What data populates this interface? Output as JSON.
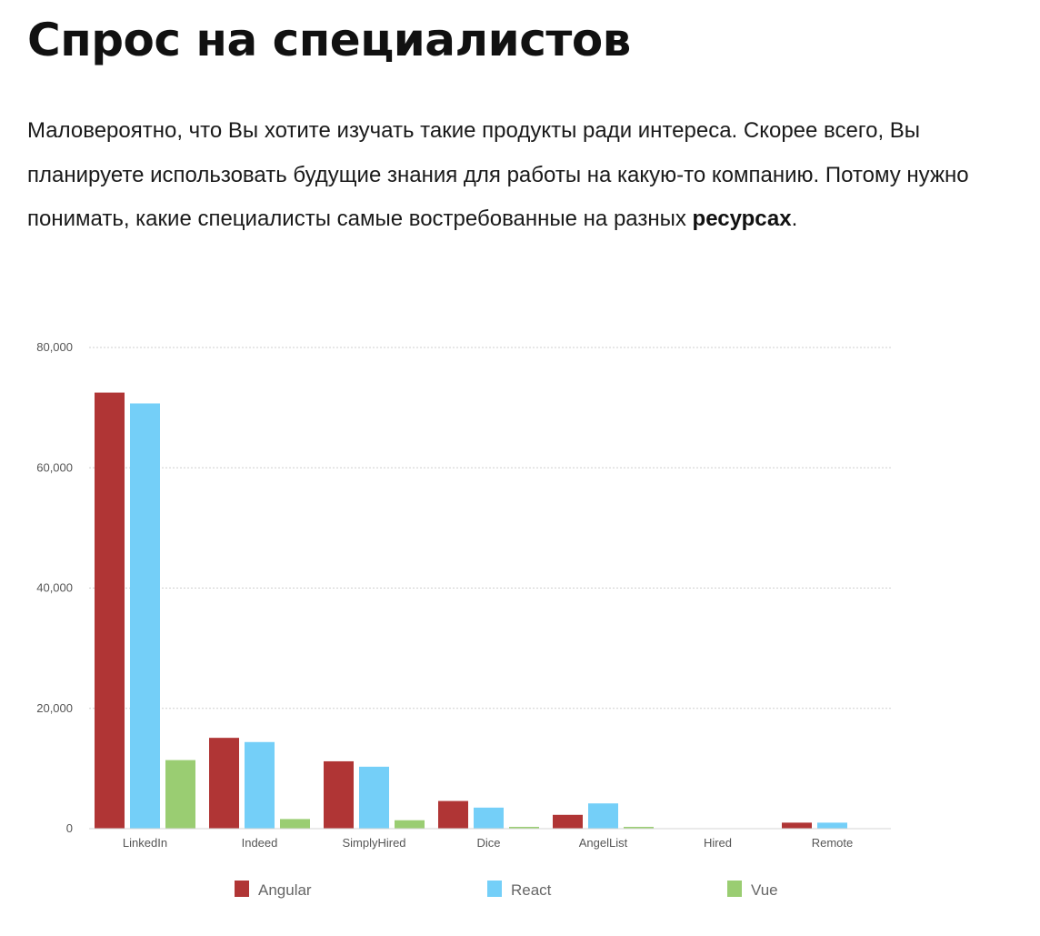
{
  "page": {
    "title": "Спрос на специалистов",
    "intro_text": "Маловероятно, что Вы хотите изучать такие продукты ради интереса. Скорее всего, Вы планируете использовать будущие знания для работы на какую-то компанию. Потому нужно понимать, какие специалисты самые востребованные на разных ",
    "intro_bold": "ресурсах",
    "intro_end": "."
  },
  "chart_data": {
    "type": "bar",
    "categories": [
      "LinkedIn",
      "Indeed",
      "SimplyHired",
      "Dice",
      "AngelList",
      "Hired",
      "Remote"
    ],
    "series": [
      {
        "name": "Angular",
        "color": "#b03535",
        "values": [
          72500,
          15100,
          11200,
          4600,
          2300,
          0,
          1000
        ]
      },
      {
        "name": "React",
        "color": "#74cff8",
        "values": [
          70700,
          14400,
          10300,
          3500,
          4200,
          0,
          1000
        ]
      },
      {
        "name": "Vue",
        "color": "#9acd72",
        "values": [
          11400,
          1600,
          1400,
          300,
          300,
          0,
          0
        ]
      }
    ],
    "yticks": [
      "0",
      "20,000",
      "40,000",
      "60,000",
      "80,000"
    ],
    "ylim": [
      0,
      80000
    ],
    "grid": true,
    "legend": "bottom"
  }
}
